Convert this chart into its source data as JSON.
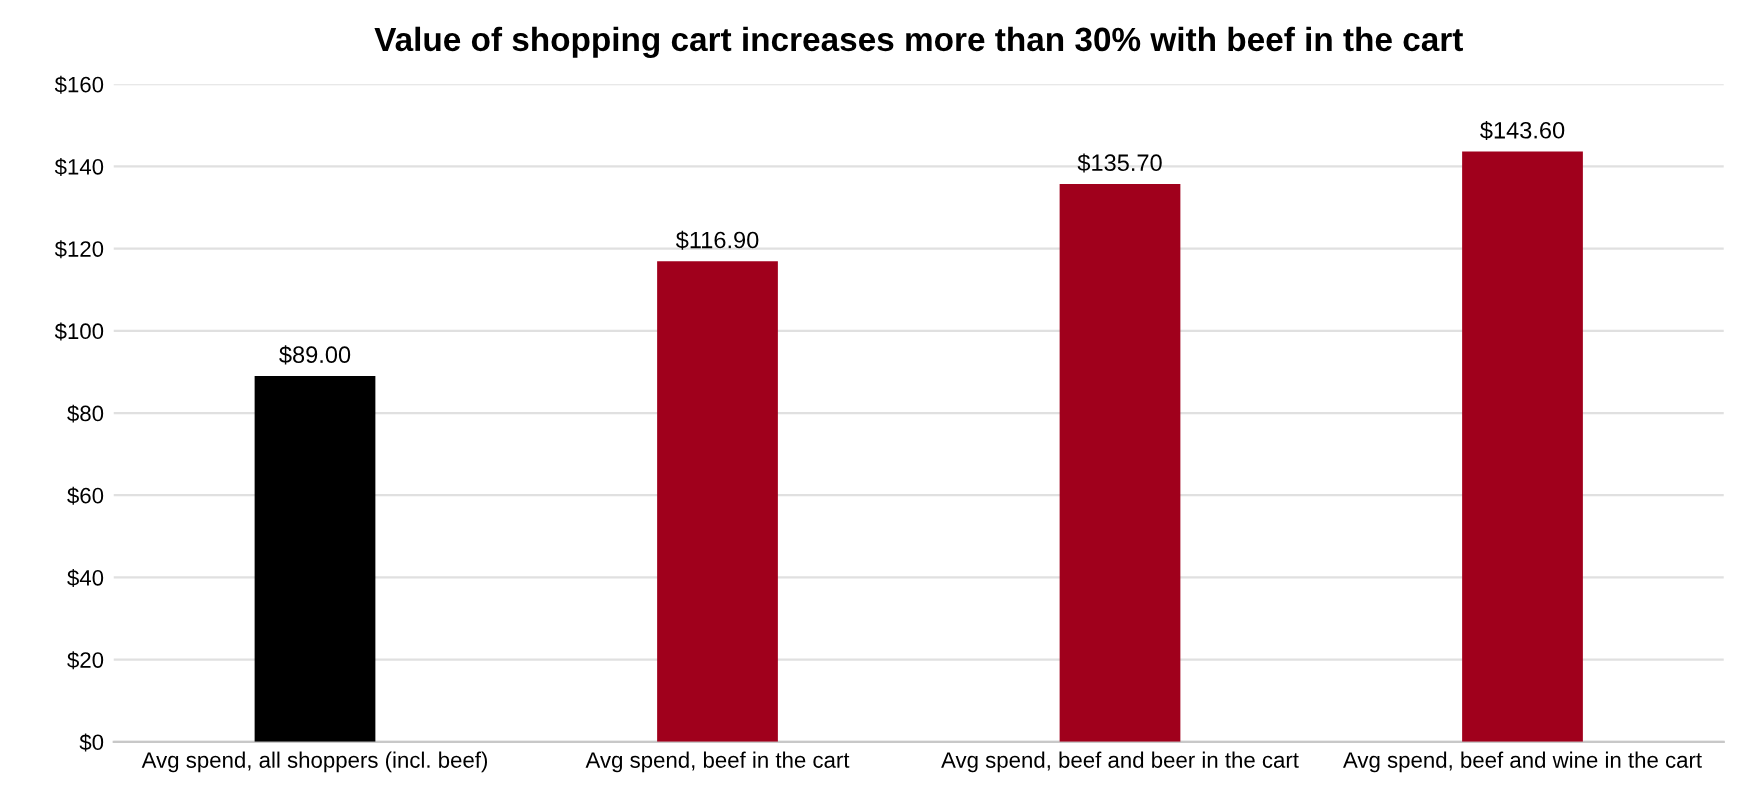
{
  "chart_data": {
    "type": "bar",
    "title": "Value of shopping cart increases more than 30% with beef in the cart",
    "categories": [
      "Avg spend, all shoppers (incl. beef)",
      "Avg spend, beef in the cart",
      "Avg spend, beef and beer in the cart",
      "Avg spend, beef and wine in the cart"
    ],
    "values": [
      89.0,
      116.9,
      135.7,
      143.6
    ],
    "colors": [
      "#000000",
      "#a0001c",
      "#a0001c",
      "#a0001c"
    ],
    "value_labels": [
      "$89.00",
      "$116.90",
      "$135.70",
      "$143.60"
    ],
    "ylim": [
      0,
      160
    ],
    "yticks": [
      {
        "value": 0,
        "label": "$0"
      },
      {
        "value": 20,
        "label": "$20"
      },
      {
        "value": 40,
        "label": "$40"
      },
      {
        "value": 60,
        "label": "$60"
      },
      {
        "value": 80,
        "label": "$80"
      },
      {
        "value": 100,
        "label": "$100"
      },
      {
        "value": 120,
        "label": "$120"
      },
      {
        "value": 140,
        "label": "$140"
      },
      {
        "value": 160,
        "label": "$160"
      }
    ],
    "grid": "y",
    "legend": false
  }
}
